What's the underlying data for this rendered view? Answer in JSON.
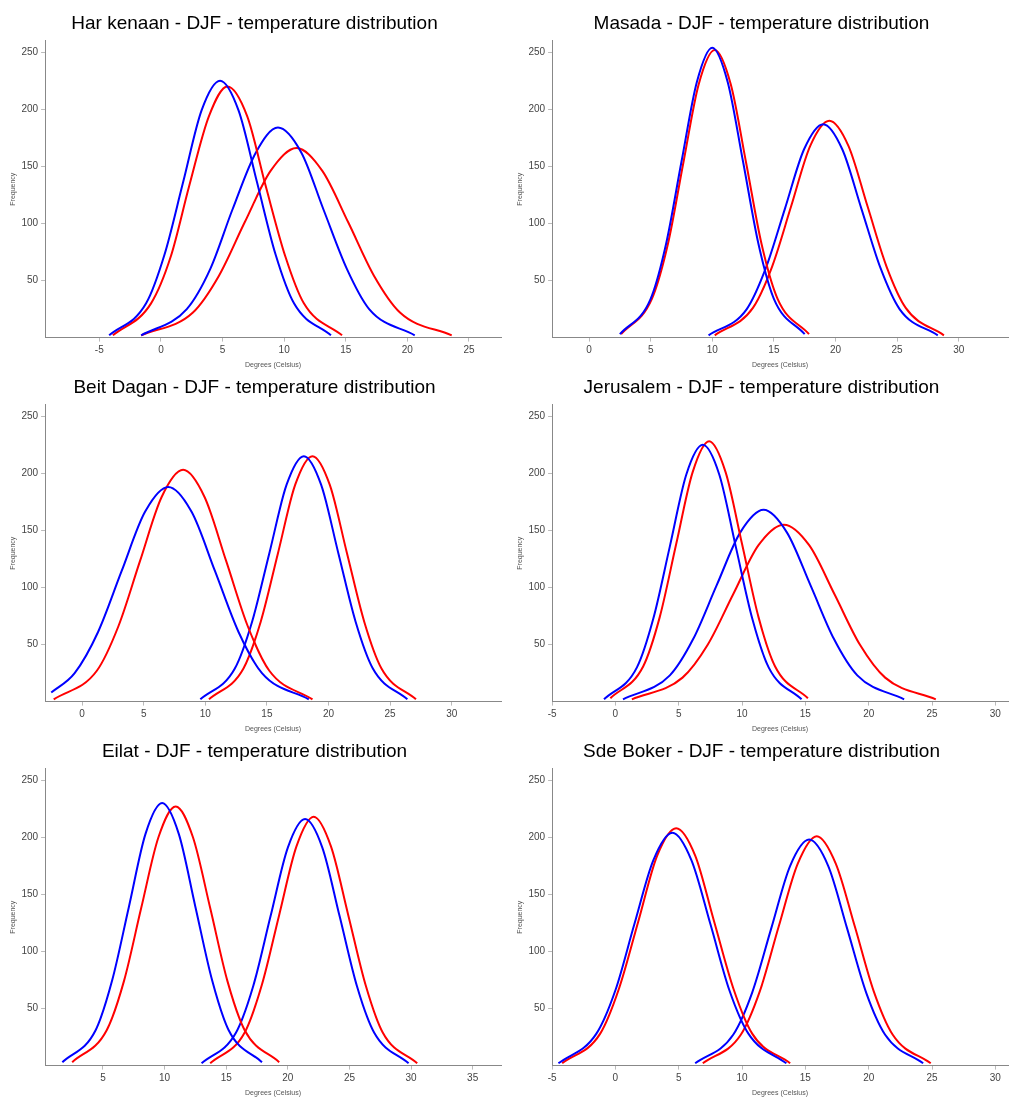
{
  "chart_data": [
    {
      "type": "line",
      "title": "Har kenaan - DJF - temperature distribution",
      "xlabel": "Degrees (Celsius)",
      "ylabel": "Frequency",
      "xlim": [
        -9.4,
        27.6
      ],
      "ylim": [
        0,
        260
      ],
      "xticks": [
        -5,
        0,
        5,
        10,
        15,
        20,
        25
      ],
      "yticks": [
        50,
        100,
        150,
        200,
        250
      ],
      "marker": "none",
      "line_style": "solid",
      "series": [
        {
          "color": "#0000ff",
          "x": [
            -4.2,
            -1.2,
            0.3,
            1.8,
            3.3,
            4.8,
            6.3,
            7.8,
            9.3,
            10.8,
            13.8
          ],
          "values": [
            2,
            30,
            73,
            136,
            199,
            225,
            199,
            136,
            73,
            30,
            2
          ]
        },
        {
          "color": "#ff0000",
          "x": [
            -3.9,
            -0.8,
            0.8,
            2.3,
            3.9,
            5.4,
            7.0,
            8.5,
            10.1,
            11.6,
            14.7
          ],
          "values": [
            2,
            30,
            71,
            133,
            194,
            220,
            194,
            133,
            71,
            30,
            2
          ]
        },
        {
          "color": "#0000ff",
          "x": [
            -1.6,
            2.1,
            4.0,
            5.8,
            7.7,
            9.5,
            11.4,
            13.2,
            15.1,
            16.9,
            20.6
          ],
          "values": [
            2,
            25,
            60,
            112,
            162,
            184,
            162,
            112,
            60,
            25,
            2
          ]
        },
        {
          "color": "#ff0000",
          "x": [
            -1.6,
            2.6,
            4.7,
            6.8,
            8.9,
            11,
            13.1,
            15.2,
            17.3,
            19.4,
            23.6
          ],
          "values": [
            2,
            22,
            54,
            101,
            146,
            166,
            146,
            101,
            54,
            22,
            2
          ]
        }
      ]
    },
    {
      "type": "line",
      "title": "Masada - DJF - temperature distribution",
      "xlabel": "Degrees (Celsius)",
      "ylabel": "Frequency",
      "xlim": [
        -3,
        34
      ],
      "ylim": [
        0,
        260
      ],
      "xticks": [
        0,
        5,
        10,
        15,
        20,
        25,
        30
      ],
      "yticks": [
        50,
        100,
        150,
        200,
        250
      ],
      "marker": "none",
      "line_style": "solid",
      "series": [
        {
          "color": "#0000ff",
          "x": [
            2.5,
            5,
            6.25,
            7.5,
            8.75,
            10,
            11.25,
            12.5,
            13.75,
            15,
            17.5
          ],
          "values": [
            3,
            34,
            82,
            154,
            224,
            254,
            224,
            154,
            82,
            34,
            3
          ]
        },
        {
          "color": "#ff0000",
          "x": [
            2.6,
            5.1,
            6.4,
            7.65,
            8.9,
            10.2,
            11.5,
            12.75,
            14.0,
            15.3,
            17.85
          ],
          "values": [
            3,
            34,
            82,
            153,
            222,
            252,
            222,
            153,
            82,
            34,
            3
          ]
        },
        {
          "color": "#0000ff",
          "x": [
            9.7,
            12.8,
            14.35,
            15.9,
            17.45,
            19,
            20.55,
            22.1,
            23.65,
            25.2,
            28.3
          ],
          "values": [
            2,
            25,
            61,
            113,
            165,
            187,
            165,
            113,
            61,
            25,
            2
          ]
        },
        {
          "color": "#ff0000",
          "x": [
            10.2,
            13.3,
            14.85,
            16.4,
            17.95,
            19.5,
            21.05,
            22.6,
            24.15,
            25.7,
            28.8
          ],
          "values": [
            2,
            26,
            62,
            115,
            168,
            190,
            168,
            115,
            62,
            26,
            2
          ]
        }
      ]
    },
    {
      "type": "line",
      "title": "Beit Dagan - DJF - temperature distribution",
      "xlabel": "Degrees (Celsius)",
      "ylabel": "Frequency",
      "xlim": [
        -3,
        34
      ],
      "ylim": [
        0,
        260
      ],
      "xticks": [
        0,
        5,
        10,
        15,
        20,
        25,
        30
      ],
      "yticks": [
        50,
        100,
        150,
        200,
        250
      ],
      "marker": "none",
      "line_style": "solid",
      "series": [
        {
          "color": "#0000ff",
          "x": [
            -2.5,
            -0.6,
            1.3,
            3.2,
            5.1,
            7,
            8.9,
            10.8,
            12.7,
            14.6,
            18.4
          ],
          "values": [
            8,
            25,
            61,
            114,
            166,
            188,
            166,
            114,
            61,
            25,
            2
          ]
        },
        {
          "color": "#ff0000",
          "x": [
            -2.3,
            1.2,
            2.95,
            4.7,
            6.45,
            8.2,
            9.95,
            11.7,
            13.45,
            15.2,
            18.7
          ],
          "values": [
            2,
            27,
            66,
            123,
            179,
            203,
            179,
            123,
            66,
            27,
            2
          ]
        },
        {
          "color": "#0000ff",
          "x": [
            9.6,
            12.4,
            13.8,
            15.2,
            16.6,
            18,
            19.4,
            20.8,
            22.2,
            23.6,
            26.4
          ],
          "values": [
            2,
            29,
            70,
            130,
            190,
            215,
            190,
            130,
            70,
            29,
            2
          ]
        },
        {
          "color": "#ff0000",
          "x": [
            10.3,
            13.1,
            14.5,
            15.9,
            17.3,
            18.7,
            20.1,
            21.5,
            22.9,
            24.3,
            27.1
          ],
          "values": [
            2,
            29,
            70,
            130,
            190,
            215,
            190,
            130,
            70,
            29,
            2
          ]
        }
      ]
    },
    {
      "type": "line",
      "title": "Jerusalem - DJF - temperature distribution",
      "xlabel": "Degrees (Celsius)",
      "ylabel": "Frequency",
      "xlim": [
        -5,
        31
      ],
      "ylim": [
        0,
        260
      ],
      "xticks": [
        -5,
        0,
        5,
        10,
        15,
        20,
        25,
        30
      ],
      "yticks": [
        50,
        100,
        150,
        200,
        250
      ],
      "marker": "none",
      "line_style": "solid",
      "series": [
        {
          "color": "#0000ff",
          "x": [
            -0.9,
            1.7,
            3.0,
            4.3,
            5.6,
            6.9,
            8.2,
            9.5,
            10.8,
            12.1,
            14.7
          ],
          "values": [
            2,
            30,
            73,
            136,
            199,
            225,
            199,
            136,
            73,
            30,
            2
          ]
        },
        {
          "color": "#ff0000",
          "x": [
            -0.4,
            2.2,
            3.5,
            4.8,
            6.1,
            7.4,
            8.7,
            10,
            11.3,
            12.6,
            15.2
          ],
          "values": [
            3,
            31,
            74,
            138,
            201,
            228,
            201,
            138,
            74,
            31,
            3
          ]
        },
        {
          "color": "#0000ff",
          "x": [
            0.6,
            4.3,
            6.15,
            8.0,
            9.85,
            11.7,
            13.55,
            15.4,
            17.25,
            19.1,
            22.8
          ],
          "values": [
            2,
            23,
            55,
            102,
            148,
            168,
            148,
            102,
            55,
            23,
            2
          ]
        },
        {
          "color": "#ff0000",
          "x": [
            1.3,
            5.3,
            7.3,
            9.3,
            11.3,
            13.3,
            15.3,
            17.3,
            19.3,
            21.3,
            25.3
          ],
          "values": [
            2,
            21,
            50,
            94,
            137,
            155,
            137,
            94,
            50,
            21,
            2
          ]
        }
      ]
    },
    {
      "type": "line",
      "title": "Eilat - DJF - temperature distribution",
      "xlabel": "Degrees (Celsius)",
      "ylabel": "Frequency",
      "xlim": [
        0.3,
        37.3
      ],
      "ylim": [
        0,
        260
      ],
      "xticks": [
        5,
        10,
        15,
        20,
        25,
        30,
        35
      ],
      "yticks": [
        50,
        100,
        150,
        200,
        250
      ],
      "marker": "none",
      "line_style": "solid",
      "series": [
        {
          "color": "#0000ff",
          "x": [
            1.7,
            4.4,
            5.75,
            7.1,
            8.45,
            9.8,
            11.15,
            12.5,
            13.85,
            15.2,
            17.9
          ],
          "values": [
            3,
            31,
            75,
            139,
            203,
            230,
            203,
            139,
            75,
            31,
            3
          ]
        },
        {
          "color": "#ff0000",
          "x": [
            2.5,
            5.3,
            6.7,
            8.1,
            9.5,
            10.9,
            12.3,
            13.7,
            15.1,
            16.5,
            19.3
          ],
          "values": [
            3,
            31,
            74,
            138,
            200,
            227,
            200,
            138,
            74,
            31,
            3
          ]
        },
        {
          "color": "#0000ff",
          "x": [
            13,
            15.8,
            17.2,
            18.6,
            20,
            21.4,
            22.8,
            24.2,
            25.6,
            27,
            29.8
          ],
          "values": [
            2,
            29,
            70,
            131,
            191,
            216,
            191,
            131,
            70,
            29,
            2
          ]
        },
        {
          "color": "#ff0000",
          "x": [
            13.7,
            16.5,
            17.9,
            19.3,
            20.7,
            22.1,
            23.5,
            24.9,
            26.3,
            27.7,
            30.5
          ],
          "values": [
            2,
            29,
            71,
            132,
            192,
            218,
            192,
            132,
            71,
            29,
            2
          ]
        }
      ]
    },
    {
      "type": "line",
      "title": "Sde Boker - DJF - temperature distribution",
      "xlabel": "Degrees (Celsius)",
      "ylabel": "Frequency",
      "xlim": [
        -5,
        31
      ],
      "ylim": [
        0,
        260
      ],
      "xticks": [
        -5,
        0,
        5,
        10,
        15,
        20,
        25,
        30
      ],
      "yticks": [
        50,
        100,
        150,
        200,
        250
      ],
      "marker": "none",
      "line_style": "solid",
      "series": [
        {
          "color": "#0000ff",
          "x": [
            -4.5,
            -1.5,
            0,
            1.5,
            3,
            4.5,
            6,
            7.5,
            9,
            10.5,
            13.5
          ],
          "values": [
            2,
            28,
            66,
            124,
            180,
            204,
            180,
            124,
            66,
            28,
            2
          ]
        },
        {
          "color": "#ff0000",
          "x": [
            -4.2,
            -1.2,
            0.3,
            1.8,
            3.3,
            4.8,
            6.3,
            7.8,
            9.3,
            10.8,
            13.8
          ],
          "values": [
            2,
            28,
            68,
            126,
            184,
            208,
            184,
            126,
            68,
            28,
            2
          ]
        },
        {
          "color": "#0000ff",
          "x": [
            6.3,
            9.3,
            10.8,
            12.3,
            13.8,
            15.3,
            16.8,
            18.3,
            19.8,
            21.3,
            24.3
          ],
          "values": [
            2,
            27,
            64,
            120,
            175,
            198,
            175,
            120,
            64,
            27,
            2
          ]
        },
        {
          "color": "#ff0000",
          "x": [
            6.9,
            9.9,
            11.4,
            12.9,
            14.4,
            15.9,
            17.4,
            18.9,
            20.4,
            21.9,
            24.9
          ],
          "values": [
            2,
            27,
            65,
            122,
            177,
            201,
            177,
            122,
            65,
            27,
            2
          ]
        }
      ]
    }
  ]
}
